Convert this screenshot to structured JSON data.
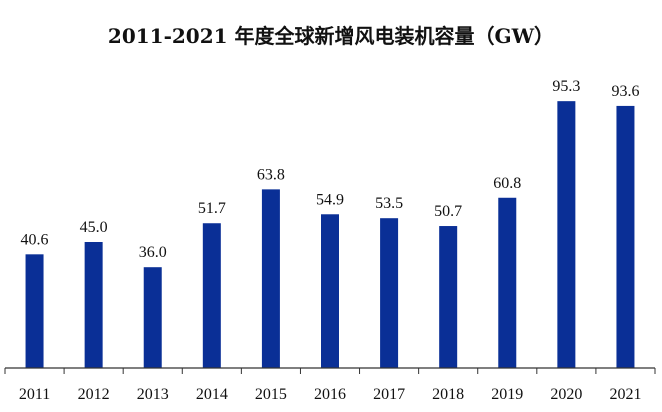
{
  "chart_data": {
    "type": "bar",
    "title": "2011-2021 年度全球新增风电装机容量（GW）",
    "categories": [
      "2011",
      "2012",
      "2013",
      "2014",
      "2015",
      "2016",
      "2017",
      "2018",
      "2019",
      "2020",
      "2021"
    ],
    "values": [
      40.6,
      45.0,
      36.0,
      51.7,
      63.8,
      54.9,
      53.5,
      50.7,
      60.8,
      95.3,
      93.6
    ],
    "value_labels": [
      "40.6",
      "45.0",
      "36.0",
      "51.7",
      "63.8",
      "54.9",
      "53.5",
      "50.7",
      "60.8",
      "95.3",
      "93.6"
    ],
    "xlabel": "",
    "ylabel": "",
    "ylim": [
      0,
      100
    ],
    "grid": false,
    "bar_color": "#0a2f96"
  }
}
